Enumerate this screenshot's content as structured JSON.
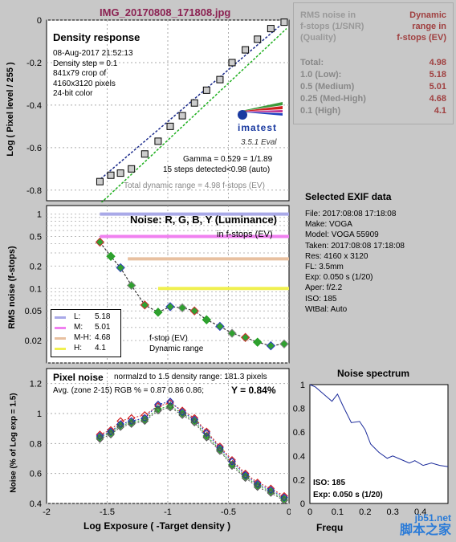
{
  "title": "IMG_20170808_171808.jpg",
  "colors": {
    "title": "#8b2252",
    "stats_label": "#888888",
    "stats_value": "#a04040"
  },
  "stats": {
    "header_left": [
      "RMS noise in",
      "f-stops (1/SNR)",
      "(Quality)"
    ],
    "header_right": [
      "Dynamic",
      "range in",
      "f-stops (EV)"
    ],
    "rows": [
      {
        "label": "Total:",
        "value": "4.98"
      },
      {
        "label": "1.0  (Low):",
        "value": "5.18"
      },
      {
        "label": "0.5  (Medium)",
        "value": "5.01"
      },
      {
        "label": "0.25 (Med-High)",
        "value": "4.68"
      },
      {
        "label": "0.1  (High)",
        "value": "4.1"
      }
    ]
  },
  "exif": {
    "title": "Selected EXIF data",
    "lines": [
      "File:  2017:08:08 17:18:08",
      "Make:  VOGA",
      "Model: VOGA 55909",
      "Taken: 2017:08:08 17:18:08",
      "Res:   4160 x 3120",
      "FL:    3.5mm",
      "Exp:   0.050 s  (1/20)",
      "Aper:  f/2.2",
      "ISO:   185",
      "WtBal: Auto"
    ]
  },
  "density_panel": {
    "heading": "Density response",
    "info": [
      "08-Aug-2017 21:52:13",
      "Density step = 0.1",
      "841x79 crop of",
      "4160x3120 pixels",
      "24-bit color"
    ],
    "logo": "imatest",
    "version": "3.5.1  Eval",
    "gamma": "Gamma = 0.529 = 1/1.89",
    "steps": "15 steps detected<0.98 (auto)",
    "total_dr": "Total dynamic range = 4.98 f-stops (EV)",
    "ylabel": "Log ( Pixel level / 255 )"
  },
  "noise_panel": {
    "heading": "Noise: R, G, B, Y (Luminance)",
    "subheading": "in f-stops (EV)",
    "ylabel": "RMS noise (f-stops)",
    "legend": [
      {
        "key": "L:",
        "value": "5.18",
        "color": "#a9a9e8"
      },
      {
        "key": "M:",
        "value": "5.01",
        "color": "#f080f0"
      },
      {
        "key": "M-H:",
        "value": "4.68",
        "color": "#e8c0a0"
      },
      {
        "key": "H:",
        "value": "4.1",
        "color": "#f0f050"
      }
    ],
    "caption": [
      "f-stop (EV)",
      "Dynamic range"
    ]
  },
  "pixel_panel": {
    "heading": "Pixel noise",
    "norm": "normalzd to 1.5 density range: 181.3 pixels",
    "avg": "Avg. (zone 2-15) RGB % = 0.87  0.86  0.86;",
    "y": "Y = 0.84%",
    "ylabel": "Noise (% of Log exp = 1.5)",
    "xlabel": "Log Exposure ( -Target density )"
  },
  "spectrum_panel": {
    "title": "Noise spectrum",
    "iso": "ISO:   185",
    "exp": "Exp:  0.050 s  (1/20)",
    "xlabel": "Frequ"
  },
  "watermark": [
    "jb51.net",
    "脚本之家"
  ],
  "chart_data": [
    {
      "type": "scatter",
      "title": "Density response",
      "ylabel": "Log ( Pixel level / 255 )",
      "xlim": [
        -2,
        0
      ],
      "ylim": [
        -0.85,
        0
      ],
      "yticks": [
        0,
        -0.2,
        -0.4,
        -0.6,
        -0.8
      ],
      "x": [
        -1.56,
        -1.47,
        -1.39,
        -1.3,
        -1.19,
        -1.08,
        -0.98,
        -0.88,
        -0.78,
        -0.68,
        -0.57,
        -0.47,
        -0.36,
        -0.26,
        -0.15,
        -0.04
      ],
      "y": [
        -0.76,
        -0.73,
        -0.72,
        -0.7,
        -0.63,
        -0.57,
        -0.5,
        -0.45,
        -0.39,
        -0.33,
        -0.28,
        -0.2,
        -0.14,
        -0.09,
        -0.04,
        -0.01
      ],
      "fit_line": [
        [
          -1.58,
          -0.76
        ],
        [
          -0.02,
          0.0
        ]
      ],
      "fit_line2": [
        [
          -1.55,
          -0.86
        ],
        [
          -0.02,
          -0.04
        ]
      ]
    },
    {
      "type": "line",
      "title": "Noise: R, G, B, Y (Luminance)",
      "ylabel": "RMS noise (f-stops)",
      "yscale": "log",
      "xlim": [
        -2,
        0
      ],
      "ylim": [
        0.01,
        1.3
      ],
      "yticks": [
        1,
        0.5,
        0.2,
        0.1,
        0.05,
        0.02
      ],
      "x": [
        -1.56,
        -1.47,
        -1.39,
        -1.3,
        -1.19,
        -1.08,
        -0.98,
        -0.88,
        -0.78,
        -0.68,
        -0.57,
        -0.47,
        -0.36,
        -0.26,
        -0.15,
        -0.04
      ],
      "series": [
        {
          "name": "Y",
          "values": [
            0.42,
            0.27,
            0.19,
            0.11,
            0.06,
            0.048,
            0.057,
            0.055,
            0.05,
            0.038,
            0.031,
            0.025,
            0.022,
            0.019,
            0.017,
            0.018
          ]
        }
      ],
      "thresholds": [
        {
          "value": 1.0,
          "color": "#a9a9e8",
          "x_start": -1.56
        },
        {
          "value": 0.5,
          "color": "#f080f0",
          "x_start": -1.56
        },
        {
          "value": 0.25,
          "color": "#e8c0a0",
          "x_start": -1.33
        },
        {
          "value": 0.1,
          "color": "#f0f050",
          "x_start": -1.08
        }
      ]
    },
    {
      "type": "line",
      "title": "Pixel noise",
      "xlabel": "Log Exposure ( -Target density )",
      "ylabel": "Noise (% of Log exp = 1.5)",
      "xlim": [
        -2,
        0
      ],
      "ylim": [
        0.4,
        1.3
      ],
      "xticks": [
        -2,
        -1.5,
        -1,
        -0.5,
        0
      ],
      "yticks": [
        1.2,
        1,
        0.8,
        0.6,
        0.4
      ],
      "x": [
        -1.56,
        -1.47,
        -1.39,
        -1.3,
        -1.19,
        -1.08,
        -0.98,
        -0.88,
        -0.78,
        -0.68,
        -0.57,
        -0.47,
        -0.36,
        -0.26,
        -0.15,
        -0.04
      ],
      "series": [
        {
          "name": "R",
          "values": [
            0.86,
            0.89,
            0.95,
            0.97,
            0.99,
            1.05,
            1.07,
            1.02,
            0.97,
            0.88,
            0.78,
            0.69,
            0.6,
            0.54,
            0.5,
            0.45
          ]
        },
        {
          "name": "G",
          "values": [
            0.84,
            0.87,
            0.92,
            0.94,
            0.96,
            1.03,
            1.05,
            1.0,
            0.95,
            0.85,
            0.76,
            0.66,
            0.58,
            0.52,
            0.48,
            0.43
          ]
        },
        {
          "name": "B",
          "values": [
            0.85,
            0.88,
            0.93,
            0.95,
            0.97,
            1.06,
            1.08,
            1.01,
            0.96,
            0.87,
            0.77,
            0.68,
            0.59,
            0.53,
            0.49,
            0.44
          ]
        },
        {
          "name": "Y",
          "values": [
            0.83,
            0.86,
            0.91,
            0.93,
            0.95,
            1.02,
            1.04,
            0.99,
            0.94,
            0.84,
            0.75,
            0.65,
            0.57,
            0.51,
            0.47,
            0.42
          ]
        }
      ]
    },
    {
      "type": "line",
      "title": "Noise spectrum",
      "xlim": [
        0,
        0.5
      ],
      "ylim": [
        0,
        1
      ],
      "xticks": [
        0,
        0.1,
        0.2,
        0.3,
        0.4
      ],
      "yticks": [
        1,
        0.8,
        0.6,
        0.4,
        0.2,
        0
      ],
      "x": [
        0.0,
        0.02,
        0.05,
        0.08,
        0.1,
        0.12,
        0.15,
        0.18,
        0.2,
        0.22,
        0.25,
        0.28,
        0.3,
        0.33,
        0.36,
        0.38,
        0.41,
        0.44,
        0.47,
        0.5
      ],
      "values": [
        1.0,
        0.98,
        0.92,
        0.86,
        0.92,
        0.82,
        0.68,
        0.69,
        0.62,
        0.5,
        0.43,
        0.38,
        0.4,
        0.37,
        0.34,
        0.36,
        0.32,
        0.34,
        0.32,
        0.31
      ]
    }
  ]
}
